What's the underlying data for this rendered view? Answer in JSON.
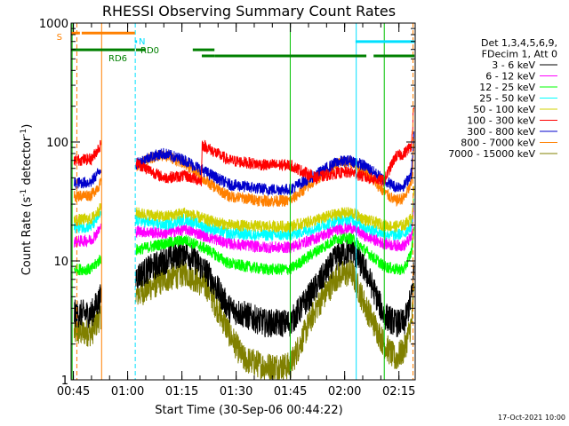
{
  "chart_data": {
    "type": "line",
    "title": "RHESSI Observing Summary Count Rates",
    "xlabel": "Start Time (30-Sep-06 00:44:22)",
    "ylabel_parts": [
      "Count Rate (s",
      "-1",
      " detector",
      "-1",
      ")"
    ],
    "yscale": "log",
    "ylim": [
      1,
      1000
    ],
    "xlim_min": [
      44.37,
      139.5
    ],
    "x_ticks": [
      {
        "min": 45,
        "label": "00:45"
      },
      {
        "min": 60,
        "label": "01:00"
      },
      {
        "min": 75,
        "label": "01:15"
      },
      {
        "min": 90,
        "label": "01:30"
      },
      {
        "min": 105,
        "label": "01:45"
      },
      {
        "min": 120,
        "label": "02:00"
      },
      {
        "min": 135,
        "label": "02:15"
      }
    ],
    "y_ticks": [
      {
        "value": 1,
        "label": "1"
      },
      {
        "value": 10,
        "label": "10"
      },
      {
        "value": 100,
        "label": "100"
      },
      {
        "value": 1000,
        "label": "1000"
      }
    ],
    "legend_header": [
      "Det 1,3,4,5,6,9,",
      "FDecim 1, Att 0"
    ],
    "flags": [
      {
        "label": "S",
        "color": "#ff8000",
        "level_frac": 0.028,
        "segments": [
          [
            44.5,
            46.8
          ],
          [
            47.3,
            62.0
          ]
        ]
      },
      {
        "label": "N",
        "color": "#00e0ff",
        "level_frac": 0.052,
        "segments": [
          [
            62.0,
            62.6
          ],
          [
            123.0,
            139.3
          ]
        ]
      },
      {
        "label": "RD0",
        "color": "#008000",
        "level_frac": 0.075,
        "segments": [
          [
            44.5,
            62.0
          ],
          [
            62.3,
            65.0
          ],
          [
            78.0,
            84.0
          ]
        ]
      },
      {
        "label": "RD6",
        "color": "#008000",
        "level_frac": 0.092,
        "segments": [
          [
            80.5,
            84.0
          ],
          [
            84.0,
            105.0
          ],
          [
            105.0,
            126.0
          ],
          [
            128.0,
            139.3
          ]
        ]
      }
    ],
    "series": [
      {
        "name": "3 - 6 keV",
        "color": "#000000",
        "x": [
          45.2,
          50.0,
          52.6,
          70.0,
          76.0,
          82.0,
          88.0,
          98.0,
          104.9,
          112.0,
          118.0,
          122.0,
          126.0,
          130.9,
          134.0,
          136.5,
          138.5,
          139.2
        ],
        "y": [
          3.6,
          3.6,
          5.0,
          10.0,
          12.0,
          8.0,
          4.0,
          3.0,
          3.0,
          6.0,
          11.0,
          12.5,
          8.0,
          3.5,
          3.0,
          3.0,
          5.0,
          9.0
        ]
      },
      {
        "name": "6 - 12 keV",
        "color": "#ff00ff",
        "x": [
          45.2,
          50.0,
          52.6,
          70.0,
          76.0,
          82.0,
          88.0,
          98.0,
          104.9,
          112.0,
          118.0,
          122.0,
          126.0,
          130.9,
          134.0,
          136.5,
          138.5,
          139.2
        ],
        "y": [
          14.5,
          15.0,
          19.0,
          17.0,
          18.5,
          16.0,
          14.0,
          13.0,
          13.0,
          15.5,
          18.5,
          19.0,
          16.0,
          14.0,
          13.5,
          13.5,
          16.0,
          30.0
        ]
      },
      {
        "name": "12 - 25 keV",
        "color": "#00ff00",
        "x": [
          45.2,
          50.0,
          52.6,
          70.0,
          76.0,
          82.0,
          88.0,
          98.0,
          104.9,
          112.0,
          118.0,
          122.0,
          126.0,
          130.9,
          134.0,
          136.5,
          138.5,
          139.2
        ],
        "y": [
          8.5,
          8.5,
          10.5,
          14.0,
          15.0,
          12.5,
          9.5,
          8.5,
          8.5,
          12.0,
          15.5,
          15.5,
          12.0,
          9.0,
          8.5,
          8.5,
          12.0,
          20.0
        ]
      },
      {
        "name": "25 - 50 keV",
        "color": "#00ffff",
        "x": [
          45.2,
          50.0,
          52.6,
          70.0,
          76.0,
          82.0,
          88.0,
          98.0,
          104.9,
          112.0,
          118.0,
          122.0,
          126.0,
          130.9,
          134.0,
          136.5,
          138.5,
          139.2
        ],
        "y": [
          19.0,
          19.5,
          25.0,
          20.0,
          22.5,
          19.0,
          17.0,
          16.5,
          16.5,
          19.0,
          22.0,
          22.5,
          19.0,
          17.0,
          16.5,
          17.0,
          20.0,
          35.0
        ]
      },
      {
        "name": "50 - 100 keV",
        "color": "#d0d000",
        "x": [
          45.2,
          50.0,
          52.6,
          70.0,
          76.0,
          82.0,
          88.0,
          98.0,
          104.9,
          112.0,
          118.0,
          122.0,
          126.0,
          130.9,
          134.0,
          136.5,
          138.5,
          139.2
        ],
        "y": [
          22.0,
          22.5,
          28.0,
          23.5,
          25.5,
          22.0,
          20.0,
          19.5,
          19.5,
          22.0,
          25.0,
          25.5,
          22.0,
          20.0,
          19.5,
          20.0,
          23.0,
          40.0
        ]
      },
      {
        "name": "100 - 300 keV",
        "color": "#ff0000",
        "x": [
          45.2,
          50.0,
          52.6,
          70.0,
          76.0,
          80.4,
          80.6,
          88.0,
          98.0,
          104.9,
          112.0,
          118.0,
          122.0,
          126.0,
          130.9,
          134.0,
          136.5,
          138.5,
          139.2
        ],
        "y": [
          70.0,
          72.0,
          95.0,
          50.0,
          52.0,
          47.0,
          95.0,
          70.0,
          64.0,
          64.0,
          50.0,
          55.0,
          55.5,
          50.0,
          47.0,
          75.0,
          80.0,
          95.0,
          230.0
        ]
      },
      {
        "name": "300 - 800 keV",
        "color": "#0000cc",
        "x": [
          45.2,
          50.0,
          52.6,
          62.3,
          66.0,
          70.0,
          76.0,
          82.0,
          88.0,
          98.0,
          104.9,
          112.0,
          118.0,
          122.0,
          126.0,
          130.9,
          134.0,
          136.5,
          138.5,
          139.2
        ],
        "y": [
          45.0,
          46.0,
          60.0,
          65.0,
          75.0,
          80.0,
          70.0,
          55.0,
          44.0,
          40.0,
          40.0,
          53.0,
          68.0,
          70.0,
          62.0,
          48.0,
          42.0,
          43.0,
          55.0,
          120.0
        ]
      },
      {
        "name": "800 - 7000 keV",
        "color": "#ff8000",
        "x": [
          45.2,
          50.0,
          52.6,
          62.3,
          66.0,
          70.0,
          76.0,
          82.0,
          88.0,
          98.0,
          104.9,
          112.0,
          118.0,
          122.0,
          126.0,
          130.9,
          134.0,
          136.5,
          138.5,
          139.2
        ],
        "y": [
          35.0,
          36.0,
          45.0,
          62.0,
          72.0,
          78.0,
          66.0,
          46.0,
          35.0,
          32.0,
          32.0,
          48.0,
          66.0,
          68.0,
          55.0,
          38.0,
          32.0,
          34.0,
          45.0,
          100.0
        ]
      },
      {
        "name": "7000 - 15000 keV",
        "color": "#808000",
        "x": [
          45.2,
          50.0,
          52.6,
          70.0,
          76.0,
          82.0,
          88.0,
          92.0,
          98.0,
          104.9,
          112.0,
          118.0,
          122.0,
          126.0,
          130.9,
          134.0,
          136.5,
          138.5,
          139.2
        ],
        "y": [
          2.5,
          2.5,
          3.5,
          7.0,
          8.0,
          6.0,
          2.5,
          1.5,
          1.3,
          1.3,
          4.0,
          7.5,
          8.0,
          4.0,
          2.0,
          1.5,
          1.8,
          3.0,
          6.0
        ]
      }
    ],
    "gaps_min": [
      [
        52.6,
        62.3
      ]
    ],
    "vlines": [
      {
        "min": 44.65,
        "color": "#00c000"
      },
      {
        "min": 45.95,
        "color": "#ff8000",
        "dashed": true
      },
      {
        "min": 52.8,
        "color": "#ff8000"
      },
      {
        "min": 62.1,
        "color": "#00e0ff",
        "dashed": true
      },
      {
        "min": 104.95,
        "color": "#00c000"
      },
      {
        "min": 123.2,
        "color": "#00e0ff"
      },
      {
        "min": 130.95,
        "color": "#00c000"
      },
      {
        "min": 138.9,
        "color": "#ff8000",
        "dashed": true
      }
    ],
    "footer_date": "17-Oct-2021 10:00"
  }
}
